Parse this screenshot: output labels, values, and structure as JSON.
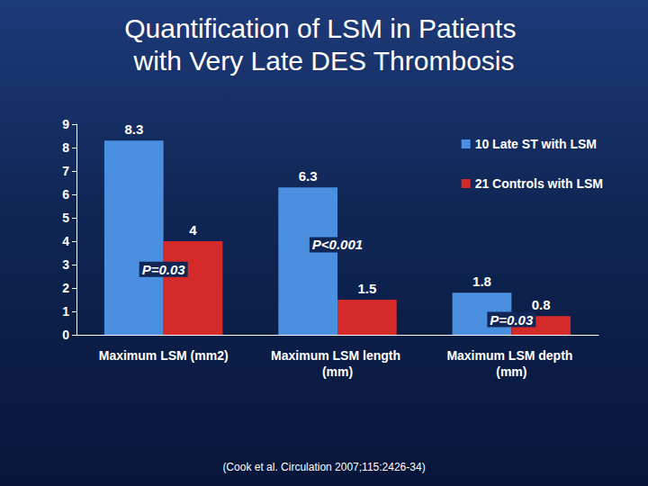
{
  "chart_data": {
    "type": "bar",
    "title": "Quantification of LSM in Patients with Very Late DES Thrombosis",
    "citation": "(Cook et al. Circulation 2007;115:2426-34)",
    "categories": [
      "Maximum LSM (mm2)",
      "Maximum LSM length (mm)",
      "Maximum LSM depth (mm)"
    ],
    "series": [
      {
        "name": "10 Late ST with LSM",
        "color": "#4a8fe0",
        "values": [
          8.3,
          6.3,
          1.8
        ]
      },
      {
        "name": "21 Controls with LSM",
        "color": "#d42a2a",
        "values": [
          4,
          1.5,
          0.8
        ]
      }
    ],
    "annotations": [
      {
        "text": "P=0.03",
        "category": "Maximum LSM (mm2)",
        "y": 2.8
      },
      {
        "text": "P<0.001",
        "category": "Maximum LSM length (mm)",
        "y": 3.85
      },
      {
        "text": "P=0.03",
        "category": "Maximum LSM depth (mm)",
        "y": 0.65
      }
    ],
    "ylim": [
      0,
      9
    ],
    "yticks": [
      0,
      1,
      2,
      3,
      4,
      5,
      6,
      7,
      8,
      9
    ],
    "grid": false,
    "legend": "top-right",
    "data_labels": true
  }
}
